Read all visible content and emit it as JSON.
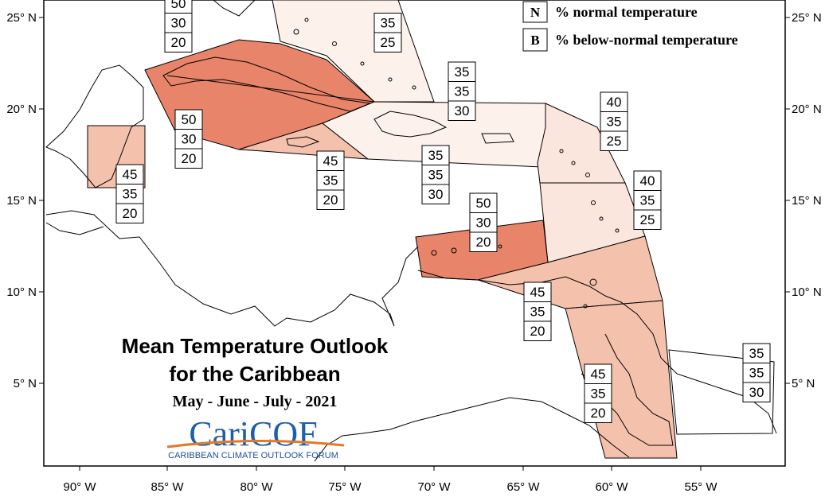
{
  "title_line1": "Mean Temperature Outlook",
  "title_line2": "for the Caribbean",
  "period": "May - June - July - 2021",
  "logo": {
    "name": "CariCOF",
    "subtitle": "CARIBBEAN CLIMATE OUTLOOK FORUM"
  },
  "legend": [
    {
      "key": "N",
      "label": "% normal temperature"
    },
    {
      "key": "B",
      "label": "% below-normal temperature"
    }
  ],
  "axes": {
    "longitude_labels": [
      "90° W",
      "85° W",
      "80° W",
      "75° W",
      "70° W",
      "65° W",
      "60° W",
      "55° W"
    ],
    "latitude_labels": [
      "25° N",
      "20° N",
      "15° N",
      "10° N",
      "5° N"
    ]
  },
  "colors": {
    "level_50": "#e8846a",
    "level_45": "#f4c1ad",
    "level_40": "#fbe6dd",
    "level_35": "#fdf1ec",
    "border": "#000000"
  },
  "regions": [
    {
      "id": "bahamas-north",
      "values": [
        "35",
        "25"
      ],
      "level": "level_35"
    },
    {
      "id": "cuba",
      "values": [
        "50",
        "30",
        "20"
      ],
      "level": "level_50"
    },
    {
      "id": "cuba-upper",
      "values": [
        "50",
        "30",
        "20"
      ],
      "level": "level_50"
    },
    {
      "id": "belize",
      "values": [
        "45",
        "35",
        "20"
      ],
      "level": "level_45"
    },
    {
      "id": "jamaica",
      "values": [
        "45",
        "35",
        "20"
      ],
      "level": "level_45"
    },
    {
      "id": "turks-caicos",
      "values": [
        "35",
        "35",
        "30"
      ],
      "level": "level_35"
    },
    {
      "id": "hispaniola-pr",
      "values": [
        "35",
        "35",
        "30"
      ],
      "level": "level_35"
    },
    {
      "id": "leeward-islands",
      "values": [
        "40",
        "35",
        "25"
      ],
      "level": "level_40"
    },
    {
      "id": "windward-islands",
      "values": [
        "40",
        "35",
        "25"
      ],
      "level": "level_40"
    },
    {
      "id": "abc-islands",
      "values": [
        "50",
        "30",
        "20"
      ],
      "level": "level_50"
    },
    {
      "id": "trinidad-venezuela",
      "values": [
        "45",
        "35",
        "20"
      ],
      "level": "level_45"
    },
    {
      "id": "guyana",
      "values": [
        "45",
        "35",
        "20"
      ],
      "level": "level_45"
    },
    {
      "id": "suriname-guiana",
      "values": [
        "35",
        "35",
        "30"
      ],
      "level": "level_35"
    }
  ]
}
